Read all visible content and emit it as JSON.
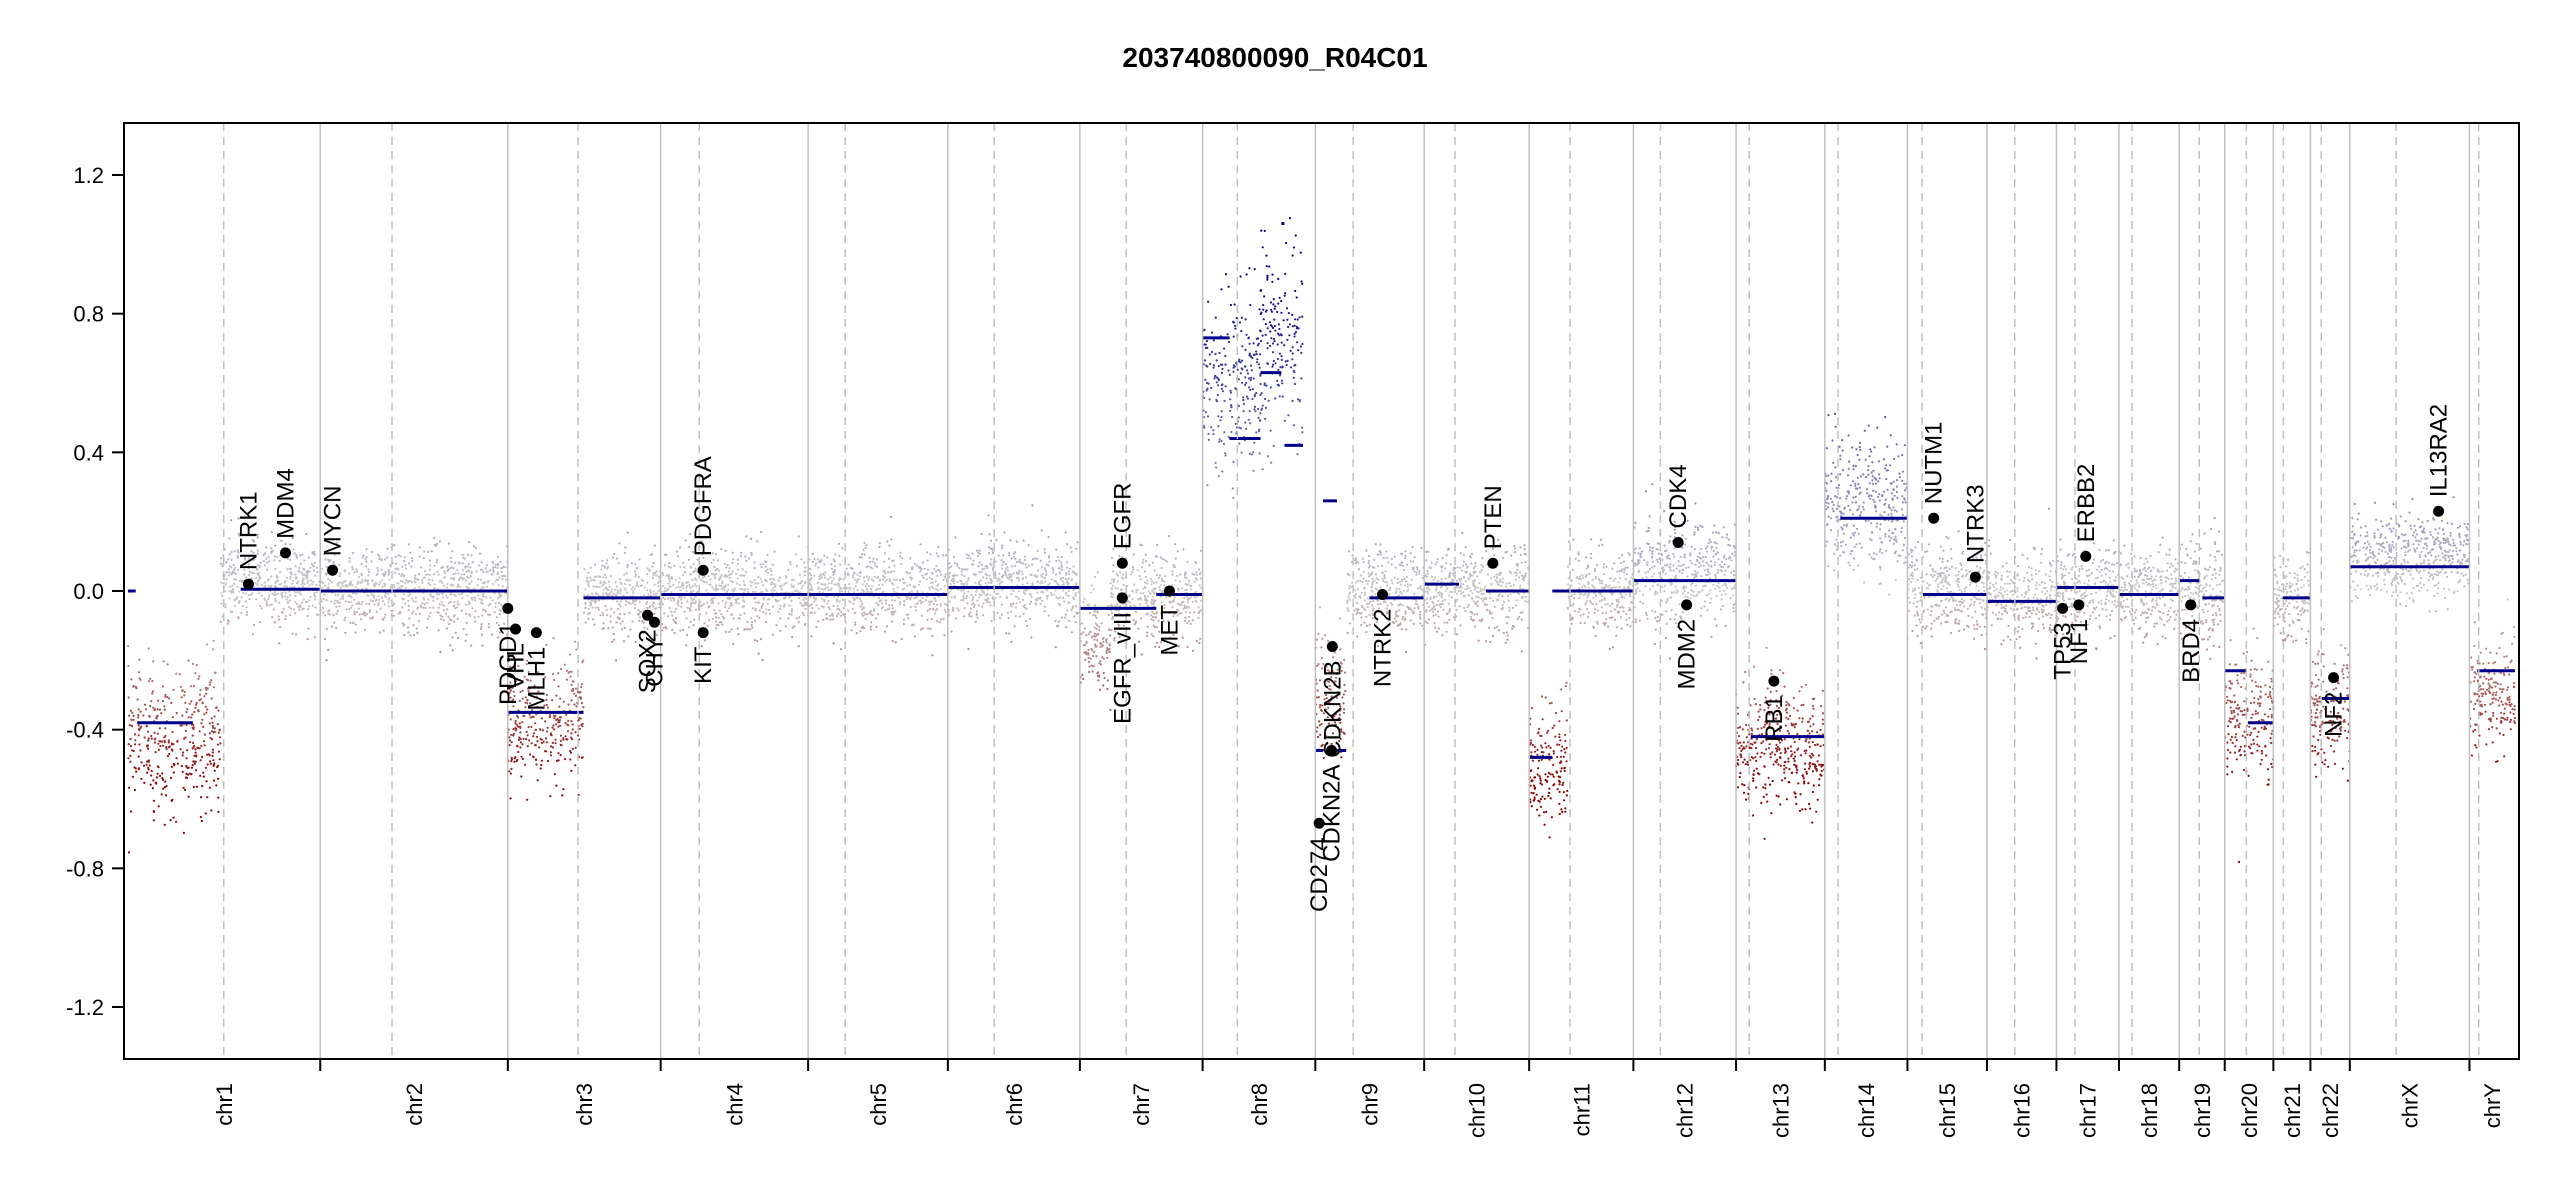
{
  "chart_data": {
    "type": "scatter",
    "title": "203740800090_R04C01",
    "xlabel": "",
    "ylabel": "",
    "ylim": [
      -1.35,
      1.35
    ],
    "yticks": [
      1.2,
      0.8,
      0.4,
      0.0,
      -0.4,
      -0.8,
      -1.2
    ],
    "ytick_labels": [
      "1.2",
      "0.8",
      "0.4",
      "0.0",
      "-0.4",
      "-0.8",
      "-1.2"
    ],
    "grid": false,
    "colors": {
      "gain": "#00008B",
      "neutral": "#C8C8C8",
      "loss": "#8B0000",
      "segment": "#00008B",
      "gene_point": "#000000",
      "chrom_line": "#C0C0C0"
    },
    "chromosomes": [
      {
        "name": "chr1",
        "length": 249,
        "centromere": 124
      },
      {
        "name": "chr2",
        "length": 243,
        "centromere": 93
      },
      {
        "name": "chr3",
        "length": 198,
        "centromere": 91
      },
      {
        "name": "chr4",
        "length": 191,
        "centromere": 50
      },
      {
        "name": "chr5",
        "length": 181,
        "centromere": 48
      },
      {
        "name": "chr6",
        "length": 171,
        "centromere": 60
      },
      {
        "name": "chr7",
        "length": 159,
        "centromere": 60
      },
      {
        "name": "chr8",
        "length": 146,
        "centromere": 45
      },
      {
        "name": "chr9",
        "length": 141,
        "centromere": 49
      },
      {
        "name": "chr10",
        "length": 136,
        "centromere": 40
      },
      {
        "name": "chr11",
        "length": 135,
        "centromere": 53
      },
      {
        "name": "chr12",
        "length": 133,
        "centromere": 35
      },
      {
        "name": "chr13",
        "length": 115,
        "centromere": 17
      },
      {
        "name": "chr14",
        "length": 107,
        "centromere": 17
      },
      {
        "name": "chr15",
        "length": 103,
        "centromere": 19
      },
      {
        "name": "chr16",
        "length": 90,
        "centromere": 36
      },
      {
        "name": "chr17",
        "length": 81,
        "centromere": 24
      },
      {
        "name": "chr18",
        "length": 78,
        "centromere": 17
      },
      {
        "name": "chr19",
        "length": 59,
        "centromere": 26
      },
      {
        "name": "chr20",
        "length": 63,
        "centromere": 28
      },
      {
        "name": "chr21",
        "length": 48,
        "centromere": 13
      },
      {
        "name": "chr22",
        "length": 51,
        "centromere": 14
      },
      {
        "name": "chrX",
        "length": 155,
        "centromere": 60
      },
      {
        "name": "chrY",
        "length": 59,
        "centromere": 12
      }
    ],
    "segments": [
      {
        "chrom": "chr1",
        "start": 0,
        "end": 10,
        "value": 0.0
      },
      {
        "chrom": "chr1",
        "start": 12,
        "end": 84,
        "value": -0.38
      },
      {
        "chrom": "chr1",
        "start": 146,
        "end": 249,
        "value": 0.005
      },
      {
        "chrom": "chr2",
        "start": 0,
        "end": 243,
        "value": 0.0
      },
      {
        "chrom": "chr3",
        "start": 0,
        "end": 98,
        "value": -0.35
      },
      {
        "chrom": "chr3",
        "start": 98,
        "end": 198,
        "value": -0.02
      },
      {
        "chrom": "chr4",
        "start": 0,
        "end": 191,
        "value": -0.01
      },
      {
        "chrom": "chr5",
        "start": 0,
        "end": 181,
        "value": -0.01
      },
      {
        "chrom": "chr6",
        "start": 0,
        "end": 171,
        "value": 0.01
      },
      {
        "chrom": "chr7",
        "start": 0,
        "end": 99,
        "value": -0.05
      },
      {
        "chrom": "chr7",
        "start": 99,
        "end": 159,
        "value": -0.01
      },
      {
        "chrom": "chr8",
        "start": 0,
        "end": 35,
        "value": 0.73
      },
      {
        "chrom": "chr8",
        "start": 35,
        "end": 75,
        "value": 0.44
      },
      {
        "chrom": "chr8",
        "start": 75,
        "end": 102,
        "value": 0.63
      },
      {
        "chrom": "chr8",
        "start": 102,
        "end": 106,
        "value": 1.06
      },
      {
        "chrom": "chr8",
        "start": 106,
        "end": 130,
        "value": 0.42
      },
      {
        "chrom": "chr9",
        "start": 0,
        "end": 10,
        "value": -0.46
      },
      {
        "chrom": "chr9",
        "start": 10,
        "end": 28,
        "value": 0.26
      },
      {
        "chrom": "chr9",
        "start": 28,
        "end": 40,
        "value": -0.46
      },
      {
        "chrom": "chr9",
        "start": 70,
        "end": 141,
        "value": -0.02
      },
      {
        "chrom": "chr10",
        "start": 0,
        "end": 45,
        "value": 0.02
      },
      {
        "chrom": "chr10",
        "start": 80,
        "end": 136,
        "value": 0.0
      },
      {
        "chrom": "chr11",
        "start": 0,
        "end": 30,
        "value": -0.48
      },
      {
        "chrom": "chr11",
        "start": 30,
        "end": 135,
        "value": 0.0
      },
      {
        "chrom": "chr12",
        "start": 0,
        "end": 133,
        "value": 0.03
      },
      {
        "chrom": "chr13",
        "start": 19,
        "end": 115,
        "value": -0.42
      },
      {
        "chrom": "chr14",
        "start": 20,
        "end": 107,
        "value": 0.21
      },
      {
        "chrom": "chr15",
        "start": 20,
        "end": 103,
        "value": -0.01
      },
      {
        "chrom": "chr16",
        "start": 0,
        "end": 90,
        "value": -0.03
      },
      {
        "chrom": "chr17",
        "start": 0,
        "end": 81,
        "value": 0.01
      },
      {
        "chrom": "chr18",
        "start": 0,
        "end": 78,
        "value": -0.01
      },
      {
        "chrom": "chr19",
        "start": 0,
        "end": 26,
        "value": 0.03
      },
      {
        "chrom": "chr19",
        "start": 30,
        "end": 59,
        "value": -0.02
      },
      {
        "chrom": "chr20",
        "start": 0,
        "end": 28,
        "value": -0.23
      },
      {
        "chrom": "chr20",
        "start": 30,
        "end": 63,
        "value": -0.38
      },
      {
        "chrom": "chr21",
        "start": 12,
        "end": 48,
        "value": -0.02
      },
      {
        "chrom": "chr22",
        "start": 14,
        "end": 51,
        "value": -0.31
      },
      {
        "chrom": "chrX",
        "start": 0,
        "end": 155,
        "value": 0.07
      },
      {
        "chrom": "chrY",
        "start": 10,
        "end": 59,
        "value": -0.23
      }
    ],
    "scatter_profile": [
      {
        "chrom": "chr1",
        "start": 0,
        "end": 120,
        "center": -0.42,
        "spread": 0.16
      },
      {
        "chrom": "chr1",
        "start": 120,
        "end": 249,
        "center": 0.02,
        "spread": 0.1
      },
      {
        "chrom": "chr2",
        "start": 0,
        "end": 243,
        "center": 0.0,
        "spread": 0.1
      },
      {
        "chrom": "chr3",
        "start": 0,
        "end": 98,
        "center": -0.38,
        "spread": 0.15
      },
      {
        "chrom": "chr3",
        "start": 98,
        "end": 198,
        "center": -0.02,
        "spread": 0.1
      },
      {
        "chrom": "chr4",
        "start": 0,
        "end": 191,
        "center": 0.0,
        "spread": 0.1
      },
      {
        "chrom": "chr5",
        "start": 0,
        "end": 181,
        "center": 0.0,
        "spread": 0.1
      },
      {
        "chrom": "chr6",
        "start": 0,
        "end": 171,
        "center": 0.02,
        "spread": 0.1
      },
      {
        "chrom": "chr7",
        "start": 0,
        "end": 40,
        "center": -0.15,
        "spread": 0.14
      },
      {
        "chrom": "chr7",
        "start": 40,
        "end": 159,
        "center": -0.02,
        "spread": 0.1
      },
      {
        "chrom": "chr8",
        "start": 0,
        "end": 75,
        "center": 0.6,
        "spread": 0.2
      },
      {
        "chrom": "chr8",
        "start": 75,
        "end": 130,
        "center": 0.72,
        "spread": 0.24
      },
      {
        "chrom": "chr9",
        "start": 0,
        "end": 40,
        "center": -0.3,
        "spread": 0.15
      },
      {
        "chrom": "chr9",
        "start": 40,
        "end": 141,
        "center": 0.0,
        "spread": 0.1
      },
      {
        "chrom": "chr10",
        "start": 0,
        "end": 136,
        "center": 0.0,
        "spread": 0.1
      },
      {
        "chrom": "chr11",
        "start": 0,
        "end": 50,
        "center": -0.5,
        "spread": 0.15
      },
      {
        "chrom": "chr11",
        "start": 50,
        "end": 135,
        "center": 0.0,
        "spread": 0.1
      },
      {
        "chrom": "chr12",
        "start": 0,
        "end": 133,
        "center": 0.05,
        "spread": 0.12
      },
      {
        "chrom": "chr13",
        "start": 0,
        "end": 115,
        "center": -0.45,
        "spread": 0.15
      },
      {
        "chrom": "chr14",
        "start": 0,
        "end": 107,
        "center": 0.25,
        "spread": 0.16
      },
      {
        "chrom": "chr15",
        "start": 0,
        "end": 103,
        "center": 0.0,
        "spread": 0.1
      },
      {
        "chrom": "chr16",
        "start": 0,
        "end": 90,
        "center": -0.02,
        "spread": 0.1
      },
      {
        "chrom": "chr17",
        "start": 0,
        "end": 81,
        "center": 0.0,
        "spread": 0.1
      },
      {
        "chrom": "chr18",
        "start": 0,
        "end": 78,
        "center": 0.0,
        "spread": 0.1
      },
      {
        "chrom": "chr19",
        "start": 0,
        "end": 59,
        "center": 0.0,
        "spread": 0.12
      },
      {
        "chrom": "chr20",
        "start": 0,
        "end": 63,
        "center": -0.35,
        "spread": 0.15
      },
      {
        "chrom": "chr21",
        "start": 0,
        "end": 48,
        "center": -0.02,
        "spread": 0.1
      },
      {
        "chrom": "chr22",
        "start": 0,
        "end": 51,
        "center": -0.35,
        "spread": 0.14
      },
      {
        "chrom": "chrX",
        "start": 0,
        "end": 155,
        "center": 0.1,
        "spread": 0.1
      },
      {
        "chrom": "chrY",
        "start": 0,
        "end": 59,
        "center": -0.3,
        "spread": 0.12
      }
    ],
    "genes": [
      {
        "name": "NTRK1",
        "chrom": "chr1",
        "pos": 156,
        "value": 0.02,
        "label": "above"
      },
      {
        "name": "MDM4",
        "chrom": "chr1",
        "pos": 204,
        "value": 0.11,
        "label": "above"
      },
      {
        "name": "MYCN",
        "chrom": "chr2",
        "pos": 16,
        "value": 0.06,
        "label": "above"
      },
      {
        "name": "PDGD1",
        "chrom": "chr3",
        "pos": 0,
        "value": -0.05,
        "label": "below"
      },
      {
        "name": "VHL",
        "chrom": "chr3",
        "pos": 10,
        "value": -0.11,
        "label": "below"
      },
      {
        "name": "MLH1",
        "chrom": "chr3",
        "pos": 37,
        "value": -0.12,
        "label": "below"
      },
      {
        "name": "SOX2",
        "chrom": "chr3",
        "pos": 181,
        "value": -0.07,
        "label": "below"
      },
      {
        "name": "CHY",
        "chrom": "chr3",
        "pos": 190,
        "value": -0.09,
        "label": "below"
      },
      {
        "name": "PDGFRA",
        "chrom": "chr4",
        "pos": 55,
        "value": 0.06,
        "label": "above"
      },
      {
        "name": "KIT",
        "chrom": "chr4",
        "pos": 55,
        "value": -0.12,
        "label": "below"
      },
      {
        "name": "EGFR",
        "chrom": "chr7",
        "pos": 55,
        "value": 0.08,
        "label": "above"
      },
      {
        "name": "EGFR_vIII",
        "chrom": "chr7",
        "pos": 55,
        "value": -0.02,
        "label": "below"
      },
      {
        "name": "MET",
        "chrom": "chr7",
        "pos": 116,
        "value": 0.0,
        "label": "below"
      },
      {
        "name": "CD274",
        "chrom": "chr9",
        "pos": 5,
        "value": -0.67,
        "label": "below"
      },
      {
        "name": "CDKN2A",
        "chrom": "chr9",
        "pos": 21,
        "value": -0.46,
        "label": "below"
      },
      {
        "name": "CDKN2B",
        "chrom": "chr9",
        "pos": 22,
        "value": -0.16,
        "label": "below"
      },
      {
        "name": "NTRK2",
        "chrom": "chr9",
        "pos": 87,
        "value": -0.01,
        "label": "below"
      },
      {
        "name": "PTEN",
        "chrom": "chr10",
        "pos": 89,
        "value": 0.08,
        "label": "above"
      },
      {
        "name": "CDK4",
        "chrom": "chr12",
        "pos": 58,
        "value": 0.14,
        "label": "above"
      },
      {
        "name": "MDM2",
        "chrom": "chr12",
        "pos": 69,
        "value": -0.04,
        "label": "below"
      },
      {
        "name": "RB1",
        "chrom": "chr13",
        "pos": 49,
        "value": -0.26,
        "label": "below"
      },
      {
        "name": "NUTM1",
        "chrom": "chr15",
        "pos": 34,
        "value": 0.21,
        "label": "above"
      },
      {
        "name": "NTRK3",
        "chrom": "chr15",
        "pos": 88,
        "value": 0.04,
        "label": "above"
      },
      {
        "name": "TP53",
        "chrom": "chr17",
        "pos": 8,
        "value": -0.05,
        "label": "below"
      },
      {
        "name": "NF1",
        "chrom": "chr17",
        "pos": 29,
        "value": -0.04,
        "label": "below"
      },
      {
        "name": "ERBB2",
        "chrom": "chr17",
        "pos": 38,
        "value": 0.1,
        "label": "above"
      },
      {
        "name": "BRD4",
        "chrom": "chr19",
        "pos": 15,
        "value": -0.04,
        "label": "below"
      },
      {
        "name": "NF2",
        "chrom": "chr22",
        "pos": 30,
        "value": -0.25,
        "label": "below"
      },
      {
        "name": "IL13RA2",
        "chrom": "chrX",
        "pos": 115,
        "value": 0.23,
        "label": "above"
      }
    ]
  }
}
